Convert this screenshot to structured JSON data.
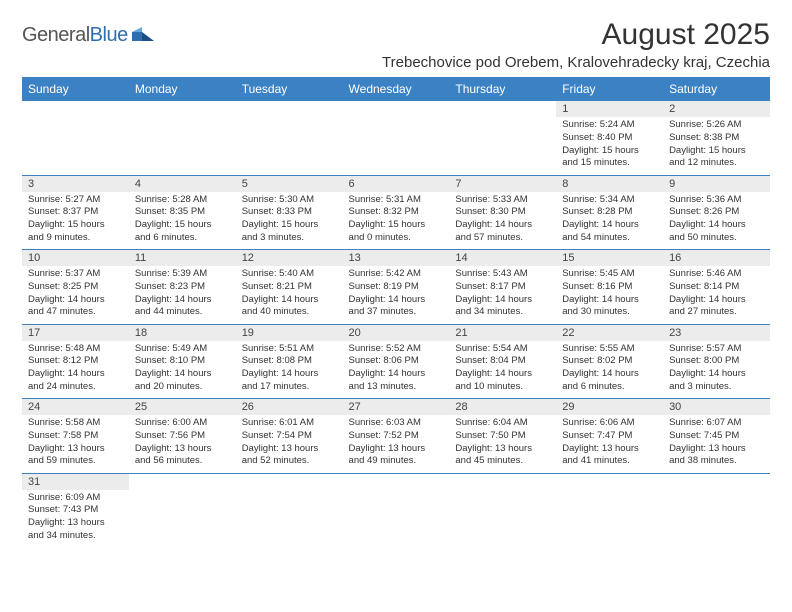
{
  "brand": {
    "name": "GeneralBlue"
  },
  "title": "August 2025",
  "location": "Trebechovice pod Orebem, Kralovehradecky kraj, Czechia",
  "colors": {
    "header_bg": "#3b82c4",
    "header_text": "#ffffff",
    "daynum_bg": "#ececec",
    "row_divider": "#3b82c4",
    "page_bg": "#ffffff",
    "text": "#333333"
  },
  "weekdays": [
    "Sunday",
    "Monday",
    "Tuesday",
    "Wednesday",
    "Thursday",
    "Friday",
    "Saturday"
  ],
  "weeks": [
    [
      null,
      null,
      null,
      null,
      null,
      {
        "n": "1",
        "sr": "5:24 AM",
        "ss": "8:40 PM",
        "dl": "15 hours and 15 minutes."
      },
      {
        "n": "2",
        "sr": "5:26 AM",
        "ss": "8:38 PM",
        "dl": "15 hours and 12 minutes."
      }
    ],
    [
      {
        "n": "3",
        "sr": "5:27 AM",
        "ss": "8:37 PM",
        "dl": "15 hours and 9 minutes."
      },
      {
        "n": "4",
        "sr": "5:28 AM",
        "ss": "8:35 PM",
        "dl": "15 hours and 6 minutes."
      },
      {
        "n": "5",
        "sr": "5:30 AM",
        "ss": "8:33 PM",
        "dl": "15 hours and 3 minutes."
      },
      {
        "n": "6",
        "sr": "5:31 AM",
        "ss": "8:32 PM",
        "dl": "15 hours and 0 minutes."
      },
      {
        "n": "7",
        "sr": "5:33 AM",
        "ss": "8:30 PM",
        "dl": "14 hours and 57 minutes."
      },
      {
        "n": "8",
        "sr": "5:34 AM",
        "ss": "8:28 PM",
        "dl": "14 hours and 54 minutes."
      },
      {
        "n": "9",
        "sr": "5:36 AM",
        "ss": "8:26 PM",
        "dl": "14 hours and 50 minutes."
      }
    ],
    [
      {
        "n": "10",
        "sr": "5:37 AM",
        "ss": "8:25 PM",
        "dl": "14 hours and 47 minutes."
      },
      {
        "n": "11",
        "sr": "5:39 AM",
        "ss": "8:23 PM",
        "dl": "14 hours and 44 minutes."
      },
      {
        "n": "12",
        "sr": "5:40 AM",
        "ss": "8:21 PM",
        "dl": "14 hours and 40 minutes."
      },
      {
        "n": "13",
        "sr": "5:42 AM",
        "ss": "8:19 PM",
        "dl": "14 hours and 37 minutes."
      },
      {
        "n": "14",
        "sr": "5:43 AM",
        "ss": "8:17 PM",
        "dl": "14 hours and 34 minutes."
      },
      {
        "n": "15",
        "sr": "5:45 AM",
        "ss": "8:16 PM",
        "dl": "14 hours and 30 minutes."
      },
      {
        "n": "16",
        "sr": "5:46 AM",
        "ss": "8:14 PM",
        "dl": "14 hours and 27 minutes."
      }
    ],
    [
      {
        "n": "17",
        "sr": "5:48 AM",
        "ss": "8:12 PM",
        "dl": "14 hours and 24 minutes."
      },
      {
        "n": "18",
        "sr": "5:49 AM",
        "ss": "8:10 PM",
        "dl": "14 hours and 20 minutes."
      },
      {
        "n": "19",
        "sr": "5:51 AM",
        "ss": "8:08 PM",
        "dl": "14 hours and 17 minutes."
      },
      {
        "n": "20",
        "sr": "5:52 AM",
        "ss": "8:06 PM",
        "dl": "14 hours and 13 minutes."
      },
      {
        "n": "21",
        "sr": "5:54 AM",
        "ss": "8:04 PM",
        "dl": "14 hours and 10 minutes."
      },
      {
        "n": "22",
        "sr": "5:55 AM",
        "ss": "8:02 PM",
        "dl": "14 hours and 6 minutes."
      },
      {
        "n": "23",
        "sr": "5:57 AM",
        "ss": "8:00 PM",
        "dl": "14 hours and 3 minutes."
      }
    ],
    [
      {
        "n": "24",
        "sr": "5:58 AM",
        "ss": "7:58 PM",
        "dl": "13 hours and 59 minutes."
      },
      {
        "n": "25",
        "sr": "6:00 AM",
        "ss": "7:56 PM",
        "dl": "13 hours and 56 minutes."
      },
      {
        "n": "26",
        "sr": "6:01 AM",
        "ss": "7:54 PM",
        "dl": "13 hours and 52 minutes."
      },
      {
        "n": "27",
        "sr": "6:03 AM",
        "ss": "7:52 PM",
        "dl": "13 hours and 49 minutes."
      },
      {
        "n": "28",
        "sr": "6:04 AM",
        "ss": "7:50 PM",
        "dl": "13 hours and 45 minutes."
      },
      {
        "n": "29",
        "sr": "6:06 AM",
        "ss": "7:47 PM",
        "dl": "13 hours and 41 minutes."
      },
      {
        "n": "30",
        "sr": "6:07 AM",
        "ss": "7:45 PM",
        "dl": "13 hours and 38 minutes."
      }
    ],
    [
      {
        "n": "31",
        "sr": "6:09 AM",
        "ss": "7:43 PM",
        "dl": "13 hours and 34 minutes."
      },
      null,
      null,
      null,
      null,
      null,
      null
    ]
  ],
  "labels": {
    "sunrise": "Sunrise:",
    "sunset": "Sunset:",
    "daylight": "Daylight:"
  }
}
